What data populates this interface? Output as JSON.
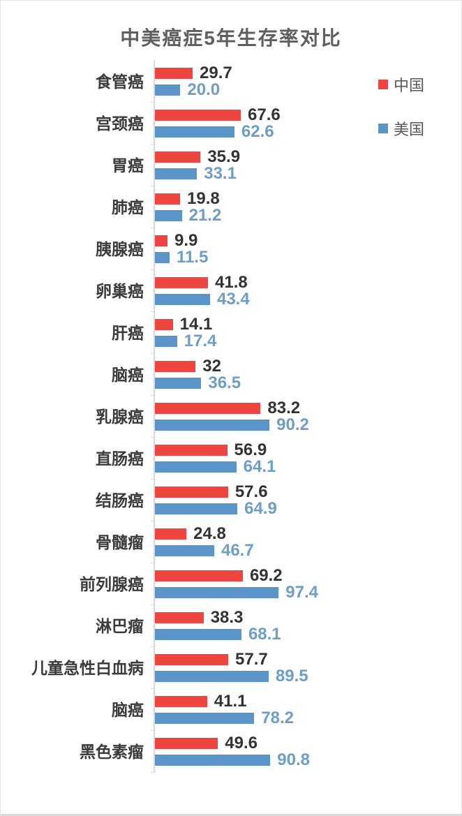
{
  "chart_data": {
    "type": "bar",
    "orientation": "horizontal",
    "title": "中美癌症5年生存率对比",
    "grid": false,
    "legend_position": "right-top",
    "axis_color": "#d9d9d9",
    "xlim": [
      0,
      100
    ],
    "categories": [
      "食管癌",
      "宫颈癌",
      "胃癌",
      "肺癌",
      "胰腺癌",
      "卵巢癌",
      "肝癌",
      "脑癌",
      "乳腺癌",
      "直肠癌",
      "结肠癌",
      "骨髓瘤",
      "前列腺癌",
      "淋巴瘤",
      "儿童急性白血病",
      "脑癌",
      "黑色素瘤"
    ],
    "series": [
      {
        "name": "中国",
        "color": "#ee4540",
        "label_color": "#333333",
        "values": [
          29.7,
          67.6,
          35.9,
          19.8,
          9.9,
          41.8,
          14.1,
          32,
          83.2,
          56.9,
          57.6,
          24.8,
          69.2,
          38.3,
          57.7,
          41.1,
          49.6
        ],
        "value_labels": [
          "29.7",
          "67.6",
          "35.9",
          "19.8",
          "9.9",
          "41.8",
          "14.1",
          "32",
          "83.2",
          "56.9",
          "57.6",
          "24.8",
          "69.2",
          "38.3",
          "57.7",
          "41.1",
          "49.6"
        ]
      },
      {
        "name": "美国",
        "color": "#5b94c8",
        "label_color": "#6d9eca",
        "values": [
          20.0,
          62.6,
          33.1,
          21.2,
          11.5,
          43.4,
          17.4,
          36.5,
          90.2,
          64.1,
          64.9,
          46.7,
          97.4,
          68.1,
          89.5,
          78.2,
          90.8
        ],
        "value_labels": [
          "20.0",
          "62.6",
          "33.1",
          "21.2",
          "11.5",
          "43.4",
          "17.4",
          "36.5",
          "90.2",
          "64.1",
          "64.9",
          "46.7",
          "97.4",
          "68.1",
          "89.5",
          "78.2",
          "90.8"
        ]
      }
    ]
  }
}
